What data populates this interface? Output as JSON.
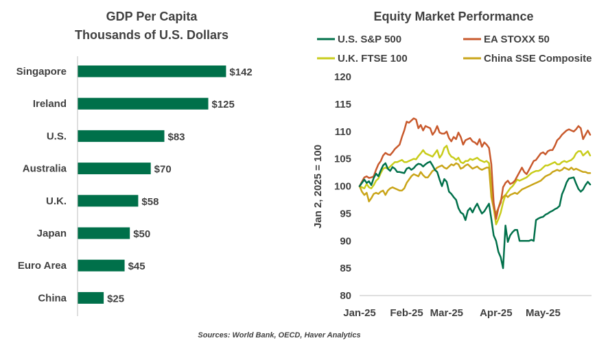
{
  "colors": {
    "bar": "#00704A",
    "sp500": "#00704A",
    "stoxx": "#C8592C",
    "ftse": "#C8CC1A",
    "sse": "#C9A417",
    "axis": "#BFBFBF",
    "text": "#404040"
  },
  "source": "Sources: World Bank, OECD, Haver Analytics",
  "chart_data": [
    {
      "type": "bar",
      "orientation": "horizontal",
      "title": "GDP Per Capita",
      "subtitle": "Thousands of U.S. Dollars",
      "categories": [
        "Singapore",
        "Ireland",
        "U.S.",
        "Australia",
        "U.K.",
        "Japan",
        "Euro Area",
        "China"
      ],
      "values": [
        142,
        125,
        83,
        70,
        58,
        50,
        45,
        25
      ],
      "value_labels": [
        "$142",
        "$125",
        "$83",
        "$70",
        "$58",
        "$50",
        "$45",
        "$25"
      ],
      "xlim": [
        0,
        160
      ]
    },
    {
      "type": "line",
      "title": "Equity Market Performance",
      "ylabel": "Jan 2, 2025 = 100",
      "ylim": [
        80,
        120
      ],
      "yticks": [
        "120",
        "115",
        "110",
        "105",
        "100",
        "95",
        "90",
        "85",
        "80"
      ],
      "xlim": [
        0,
        98
      ],
      "xticks": [
        {
          "label": "Jan-25",
          "x": 0
        },
        {
          "label": "Feb-25",
          "x": 20
        },
        {
          "label": "Mar-25",
          "x": 37
        },
        {
          "label": "Apr-25",
          "x": 58
        },
        {
          "label": "May-25",
          "x": 78
        }
      ],
      "legend_position": "top",
      "series": [
        {
          "name": "U.S. S&P 500",
          "color_key": "sp500",
          "x": [
            0,
            2,
            3,
            4,
            5,
            6,
            7,
            8,
            9,
            10,
            11,
            12,
            13,
            14,
            15,
            16,
            17,
            18,
            19,
            20,
            21,
            22,
            23,
            24,
            25,
            26,
            27,
            28,
            29,
            30,
            31,
            32,
            33,
            34,
            35,
            36,
            37,
            38,
            39,
            40,
            41,
            42,
            43,
            44,
            45,
            46,
            47,
            48,
            49,
            50,
            51,
            52,
            53,
            54,
            55,
            56,
            57,
            58,
            59,
            60,
            61,
            62,
            63,
            64,
            65,
            66,
            67,
            68,
            69,
            70,
            71,
            72,
            73,
            74,
            75,
            76,
            77,
            78,
            79,
            80,
            81,
            82,
            83,
            84,
            85,
            86,
            87,
            88,
            89,
            90,
            91,
            92,
            93,
            94,
            95,
            96,
            97,
            98
          ],
          "values": [
            100,
            101.2,
            100.6,
            100.9,
            100.2,
            101.5,
            102.3,
            101.8,
            102.9,
            103.8,
            104.2,
            103.2,
            102.8,
            103.5,
            103.2,
            102.6,
            102.6,
            102.5,
            102.4,
            103.2,
            103.4,
            103.0,
            103.3,
            103.8,
            104.1,
            104.0,
            103.6,
            104.0,
            104.3,
            104.5,
            103.8,
            103.0,
            102.6,
            101.2,
            100.0,
            101.3,
            100.8,
            99.0,
            98.6,
            98.0,
            97.5,
            96.0,
            95.2,
            94.9,
            93.8,
            95.5,
            96.0,
            95.2,
            96.1,
            96.8,
            95.8,
            95.0,
            95.4,
            96.1,
            96.8,
            94.0,
            91.0,
            90.0,
            88.0,
            87.0,
            85.0,
            92.8,
            89.8,
            91.0,
            91.6,
            92.0,
            92.0,
            90.0,
            90.0,
            90.0,
            90.0,
            90.0,
            90.2,
            90.0,
            93.8,
            94.1,
            94.3,
            94.4,
            94.8,
            95.0,
            95.3,
            95.5,
            95.8,
            96.0,
            96.4,
            98.5,
            99.5,
            100.7,
            101.4,
            101.5,
            101.6,
            100.5,
            99.5,
            99.0,
            99.4,
            100.2,
            100.8,
            100.3
          ]
        },
        {
          "name": "EA STOXX 50",
          "color_key": "stoxx",
          "x": [
            0,
            1,
            2,
            3,
            4,
            5,
            6,
            7,
            8,
            9,
            10,
            11,
            12,
            13,
            14,
            15,
            16,
            17,
            18,
            19,
            20,
            21,
            22,
            23,
            24,
            25,
            26,
            27,
            28,
            29,
            30,
            31,
            32,
            33,
            34,
            35,
            36,
            37,
            38,
            39,
            40,
            41,
            42,
            43,
            44,
            45,
            46,
            47,
            48,
            49,
            50,
            51,
            52,
            53,
            54,
            55,
            56,
            57,
            58,
            59,
            60,
            61,
            62,
            63,
            64,
            65,
            66,
            67,
            68,
            69,
            70,
            71,
            72,
            73,
            74,
            75,
            76,
            77,
            78,
            79,
            80,
            81,
            82,
            83,
            84,
            85,
            86,
            87,
            88,
            89,
            90,
            91,
            92,
            93,
            94,
            95,
            96,
            97,
            98
          ],
          "values": [
            100,
            100.8,
            101.6,
            101.8,
            101.5,
            101.6,
            101.8,
            103.0,
            104.0,
            104.6,
            105.6,
            106.1,
            105.8,
            105.7,
            106.2,
            106.8,
            107.2,
            107.6,
            109.0,
            110.2,
            111.8,
            111.6,
            112.0,
            112.4,
            112.2,
            110.6,
            111.2,
            110.2,
            111.0,
            110.8,
            110.6,
            109.4,
            110.0,
            111.0,
            109.8,
            109.6,
            109.6,
            110.0,
            108.8,
            108.2,
            109.0,
            108.6,
            109.8,
            109.0,
            107.6,
            108.4,
            108.6,
            108.8,
            108.2,
            108.0,
            107.6,
            108.6,
            107.2,
            108.0,
            107.6,
            107.0,
            104.0,
            97.0,
            94.0,
            96.0,
            97.0,
            99.8,
            100.6,
            101.0,
            100.4,
            100.6,
            101.0,
            101.8,
            102.6,
            103.4,
            102.6,
            102.2,
            103.0,
            103.8,
            104.6,
            104.8,
            105.4,
            106.0,
            106.2,
            105.8,
            106.4,
            106.6,
            106.6,
            107.4,
            108.4,
            108.8,
            109.4,
            109.8,
            110.2,
            110.4,
            110.2,
            110.0,
            110.4,
            111.0,
            110.6,
            108.6,
            109.4,
            110.2,
            109.4
          ]
        },
        {
          "name": "U.K. FTSE 100",
          "color_key": "ftse",
          "x": [
            0,
            1,
            2,
            3,
            4,
            5,
            6,
            7,
            8,
            9,
            10,
            11,
            12,
            13,
            14,
            15,
            16,
            17,
            18,
            19,
            20,
            21,
            22,
            23,
            24,
            25,
            26,
            27,
            28,
            29,
            30,
            31,
            32,
            33,
            34,
            35,
            36,
            37,
            38,
            39,
            40,
            41,
            42,
            43,
            44,
            45,
            46,
            47,
            48,
            49,
            50,
            51,
            52,
            53,
            54,
            55,
            56,
            57,
            58,
            59,
            60,
            61,
            62,
            63,
            64,
            65,
            66,
            67,
            68,
            69,
            70,
            71,
            72,
            73,
            74,
            75,
            76,
            77,
            78,
            79,
            80,
            81,
            82,
            83,
            84,
            85,
            86,
            87,
            88,
            89,
            90,
            91,
            92,
            93,
            94,
            95,
            96,
            97,
            98
          ],
          "values": [
            100,
            99.8,
            99.6,
            100.4,
            99.8,
            99.6,
            100.2,
            101.0,
            101.4,
            102.4,
            103.2,
            103.4,
            103.2,
            103.6,
            104.0,
            104.4,
            104.4,
            104.6,
            104.8,
            104.4,
            104.4,
            104.6,
            104.8,
            105.0,
            104.9,
            105.5,
            106.0,
            106.6,
            106.0,
            105.8,
            105.6,
            105.4,
            106.0,
            106.6,
            105.2,
            105.8,
            107.0,
            107.4,
            106.0,
            105.4,
            105.2,
            104.8,
            105.2,
            104.4,
            104.2,
            104.6,
            104.6,
            105.0,
            104.8,
            105.0,
            105.2,
            104.8,
            104.6,
            104.4,
            104.6,
            104.2,
            100.0,
            96.0,
            93.0,
            94.0,
            95.2,
            97.0,
            98.4,
            99.0,
            99.6,
            100.0,
            100.6,
            101.2,
            101.0,
            101.2,
            101.4,
            101.6,
            102.0,
            102.4,
            102.6,
            102.8,
            102.8,
            103.0,
            103.4,
            103.8,
            103.8,
            104.0,
            104.2,
            104.4,
            104.0,
            104.0,
            104.4,
            104.6,
            104.4,
            104.6,
            104.8,
            105.2,
            106.0,
            106.4,
            106.4,
            105.6,
            106.0,
            106.4,
            105.6
          ]
        },
        {
          "name": "China SSE Composite",
          "color_key": "sse",
          "x": [
            0,
            1,
            2,
            3,
            4,
            5,
            6,
            7,
            8,
            9,
            10,
            11,
            12,
            13,
            14,
            15,
            16,
            17,
            18,
            19,
            20,
            21,
            22,
            23,
            24,
            25,
            26,
            27,
            28,
            29,
            30,
            31,
            32,
            33,
            34,
            35,
            36,
            37,
            38,
            39,
            40,
            41,
            42,
            43,
            44,
            45,
            46,
            47,
            48,
            49,
            50,
            51,
            52,
            53,
            54,
            55,
            56,
            57,
            58,
            59,
            60,
            61,
            62,
            63,
            64,
            65,
            66,
            67,
            68,
            69,
            70,
            71,
            72,
            73,
            74,
            75,
            76,
            77,
            78,
            79,
            80,
            81,
            82,
            83,
            84,
            85,
            86,
            87,
            88,
            89,
            90,
            91,
            92,
            93,
            94,
            95,
            96,
            97,
            98
          ],
          "values": [
            100,
            99.0,
            98.4,
            98.8,
            97.2,
            97.8,
            98.6,
            98.8,
            98.6,
            99.0,
            99.2,
            98.4,
            99.2,
            99.6,
            99.8,
            99.6,
            99.4,
            99.2,
            99.2,
            99.6,
            100.6,
            101.2,
            101.8,
            102.2,
            102.0,
            101.8,
            102.6,
            102.0,
            101.6,
            101.6,
            102.2,
            102.8,
            103.0,
            103.4,
            103.6,
            103.8,
            103.4,
            103.2,
            103.6,
            104.0,
            103.8,
            104.2,
            104.0,
            103.2,
            103.4,
            103.8,
            104.0,
            103.6,
            103.2,
            103.4,
            103.6,
            103.2,
            103.0,
            103.2,
            103.4,
            103.4,
            98.0,
            96.0,
            95.0,
            96.0,
            97.4,
            98.0,
            98.4,
            98.0,
            98.4,
            98.6,
            98.8,
            98.6,
            99.0,
            99.4,
            99.6,
            99.8,
            100.0,
            100.2,
            100.4,
            100.6,
            100.8,
            101.0,
            101.4,
            101.8,
            102.0,
            102.2,
            102.6,
            102.8,
            103.0,
            102.8,
            103.0,
            103.4,
            103.2,
            103.0,
            103.4,
            103.0,
            103.2,
            103.0,
            102.8,
            102.6,
            102.6,
            102.4,
            102.4
          ]
        }
      ]
    }
  ]
}
